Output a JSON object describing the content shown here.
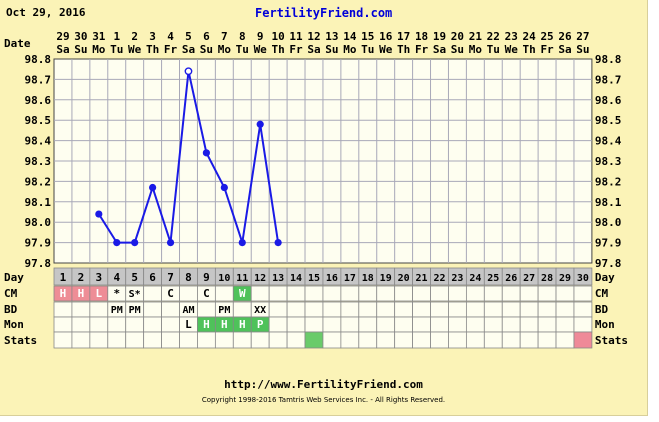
{
  "header": {
    "date": "Oct 29, 2016",
    "site": "FertilityFriend.com"
  },
  "row_labels": {
    "date": "Date",
    "day": "Day",
    "cm": "CM",
    "bd": "BD",
    "mon": "Mon",
    "stats": "Stats"
  },
  "columns": [
    {
      "date": "29",
      "weekday": "Sa",
      "day": "1",
      "cm": "H",
      "bd": "",
      "mon": "",
      "stats": ""
    },
    {
      "date": "30",
      "weekday": "Su",
      "day": "2",
      "cm": "H",
      "bd": "",
      "mon": "",
      "stats": ""
    },
    {
      "date": "31",
      "weekday": "Mo",
      "day": "3",
      "cm": "L",
      "bd": "",
      "mon": "",
      "stats": ""
    },
    {
      "date": "1",
      "weekday": "Tu",
      "day": "4",
      "cm": "*",
      "bd": "PM",
      "mon": "",
      "stats": ""
    },
    {
      "date": "2",
      "weekday": "We",
      "day": "5",
      "cm": "S*",
      "bd": "PM",
      "mon": "",
      "stats": ""
    },
    {
      "date": "3",
      "weekday": "Th",
      "day": "6",
      "cm": "",
      "bd": "",
      "mon": "",
      "stats": ""
    },
    {
      "date": "4",
      "weekday": "Fr",
      "day": "7",
      "cm": "C",
      "bd": "",
      "mon": "",
      "stats": ""
    },
    {
      "date": "5",
      "weekday": "Sa",
      "day": "8",
      "cm": "",
      "bd": "AM",
      "mon": "L",
      "stats": ""
    },
    {
      "date": "6",
      "weekday": "Su",
      "day": "9",
      "cm": "C",
      "bd": "",
      "mon": "H",
      "stats": ""
    },
    {
      "date": "7",
      "weekday": "Mo",
      "day": "10",
      "cm": "",
      "bd": "PM",
      "mon": "H",
      "stats": ""
    },
    {
      "date": "8",
      "weekday": "Tu",
      "day": "11",
      "cm": "W",
      "bd": "",
      "mon": "H",
      "stats": ""
    },
    {
      "date": "9",
      "weekday": "We",
      "day": "12",
      "cm": "",
      "bd": "XX",
      "mon": "P",
      "stats": ""
    },
    {
      "date": "10",
      "weekday": "Th",
      "day": "13",
      "cm": "",
      "bd": "",
      "mon": "",
      "stats": ""
    },
    {
      "date": "11",
      "weekday": "Fr",
      "day": "14",
      "cm": "",
      "bd": "",
      "mon": "",
      "stats": ""
    },
    {
      "date": "12",
      "weekday": "Sa",
      "day": "15",
      "cm": "",
      "bd": "",
      "mon": "",
      "stats": "green"
    },
    {
      "date": "13",
      "weekday": "Su",
      "day": "16",
      "cm": "",
      "bd": "",
      "mon": "",
      "stats": ""
    },
    {
      "date": "14",
      "weekday": "Mo",
      "day": "17",
      "cm": "",
      "bd": "",
      "mon": "",
      "stats": ""
    },
    {
      "date": "15",
      "weekday": "Tu",
      "day": "18",
      "cm": "",
      "bd": "",
      "mon": "",
      "stats": ""
    },
    {
      "date": "16",
      "weekday": "We",
      "day": "19",
      "cm": "",
      "bd": "",
      "mon": "",
      "stats": ""
    },
    {
      "date": "17",
      "weekday": "Th",
      "day": "20",
      "cm": "",
      "bd": "",
      "mon": "",
      "stats": ""
    },
    {
      "date": "18",
      "weekday": "Fr",
      "day": "21",
      "cm": "",
      "bd": "",
      "mon": "",
      "stats": ""
    },
    {
      "date": "19",
      "weekday": "Sa",
      "day": "22",
      "cm": "",
      "bd": "",
      "mon": "",
      "stats": ""
    },
    {
      "date": "20",
      "weekday": "Su",
      "day": "23",
      "cm": "",
      "bd": "",
      "mon": "",
      "stats": ""
    },
    {
      "date": "21",
      "weekday": "Mo",
      "day": "24",
      "cm": "",
      "bd": "",
      "mon": "",
      "stats": ""
    },
    {
      "date": "22",
      "weekday": "Tu",
      "day": "25",
      "cm": "",
      "bd": "",
      "mon": "",
      "stats": ""
    },
    {
      "date": "23",
      "weekday": "We",
      "day": "26",
      "cm": "",
      "bd": "",
      "mon": "",
      "stats": ""
    },
    {
      "date": "24",
      "weekday": "Th",
      "day": "27",
      "cm": "",
      "bd": "",
      "mon": "",
      "stats": ""
    },
    {
      "date": "25",
      "weekday": "Fr",
      "day": "28",
      "cm": "",
      "bd": "",
      "mon": "",
      "stats": ""
    },
    {
      "date": "26",
      "weekday": "Sa",
      "day": "29",
      "cm": "",
      "bd": "",
      "mon": "",
      "stats": ""
    },
    {
      "date": "27",
      "weekday": "Su",
      "day": "30",
      "cm": "",
      "bd": "",
      "mon": "",
      "stats": "pink"
    }
  ],
  "chart_data": {
    "type": "line",
    "xlabel": "Day",
    "ylabel": "",
    "ylim": [
      97.8,
      98.8
    ],
    "ticks": [
      "98.8",
      "98.7",
      "98.6",
      "98.5",
      "98.4",
      "98.3",
      "98.2",
      "98.1",
      "98.0",
      "97.9",
      "97.8"
    ],
    "grid": true,
    "series": [
      {
        "color": "#1a1ae6",
        "points": [
          {
            "day": 3,
            "temp": 98.04
          },
          {
            "day": 4,
            "temp": 97.9
          },
          {
            "day": 5,
            "temp": 97.9
          },
          {
            "day": 6,
            "temp": 98.17
          },
          {
            "day": 7,
            "temp": 97.9
          },
          {
            "day": 8,
            "temp": 98.74,
            "open": true
          },
          {
            "day": 9,
            "temp": 98.34
          },
          {
            "day": 10,
            "temp": 98.17
          },
          {
            "day": 11,
            "temp": 97.9
          },
          {
            "day": 12,
            "temp": 98.48
          },
          {
            "day": 13,
            "temp": 97.9
          }
        ]
      }
    ]
  },
  "colors": {
    "background": "#fbf3b7",
    "plot": "#fefef0",
    "grid": "#a8a8b8",
    "line": "#1a1ae6",
    "day_row": "#c6c6c6",
    "cm_pink": "#ee8d96",
    "cm_green": "#4fc25a",
    "mon_green": "#4fc25a",
    "stats_green": "#6acb6a",
    "stats_pink": "#ef8a98"
  },
  "footer": {
    "url": "http://www.FertilityFriend.com",
    "copyright": "Copyright 1998-2016 Tamtris Web Services Inc. - All Rights Reserved."
  }
}
